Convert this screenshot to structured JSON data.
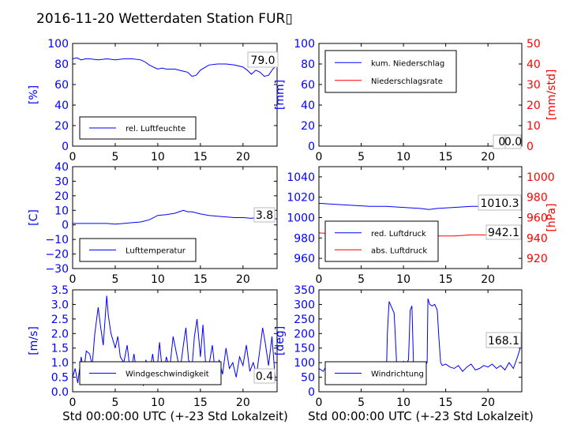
{
  "figure": {
    "title": "2016-11-20 Wetterdaten Station FUR▯",
    "colors": {
      "left_axis": "#0000ff",
      "right_axis": "#ff0000",
      "series_blue": "#0000ff",
      "series_red": "#ff0000",
      "text": "#000000"
    }
  },
  "chart_data": [
    {
      "id": "humidity",
      "type": "line",
      "ylabel": "[%]",
      "xlim": [
        0,
        24
      ],
      "xticks": [
        "0",
        "5",
        "10",
        "15",
        "20"
      ],
      "ylim": [
        0,
        100
      ],
      "yticks": [
        "0",
        "20",
        "40",
        "60",
        "80",
        "100"
      ],
      "legend": {
        "placement": "lower-left",
        "entries": [
          "rel. Luftfeuchte"
        ]
      },
      "annotation": "79.0",
      "series": [
        {
          "name": "rel. Luftfeuchte",
          "x": [
            0,
            0.5,
            1,
            1.5,
            2,
            3,
            4,
            5,
            6,
            7,
            8,
            8.5,
            9,
            9.5,
            10,
            10.5,
            11,
            12,
            13,
            13.5,
            14,
            14.5,
            15,
            16,
            17,
            18,
            19,
            20,
            20.5,
            21,
            21.5,
            22,
            22.5,
            23,
            23.5,
            24
          ],
          "y": [
            85,
            86,
            84,
            85,
            85,
            84,
            85,
            84,
            85,
            85,
            84,
            82,
            79,
            77,
            75,
            76,
            75,
            75,
            73,
            72,
            68,
            69,
            74,
            79,
            80,
            80,
            79,
            77,
            74,
            70,
            74,
            72,
            68,
            69,
            75,
            79
          ]
        }
      ]
    },
    {
      "id": "precipitation",
      "type": "line",
      "ylabel": "[mm]",
      "ylabel_right": "[mm/std]",
      "xlim": [
        0,
        24
      ],
      "xticks": [
        "0",
        "5",
        "10",
        "15",
        "20"
      ],
      "ylim": [
        0,
        100
      ],
      "yticks": [
        "0",
        "20",
        "40",
        "60",
        "80",
        "100"
      ],
      "ylim_right": [
        0,
        50
      ],
      "yticks_right": [
        "0",
        "10",
        "20",
        "30",
        "40",
        "50"
      ],
      "legend": {
        "placement": "top-left",
        "entries": [
          "kum. Niederschlag",
          "Niederschlagsrate"
        ]
      },
      "annotation": "0.0",
      "annotation2": "0.0",
      "series": [
        {
          "name": "kum. Niederschlag",
          "axis": "left",
          "x": [
            0,
            24
          ],
          "y": [
            0,
            0
          ]
        },
        {
          "name": "Niederschlagsrate",
          "axis": "right",
          "x": [
            0,
            24
          ],
          "y": [
            0,
            0
          ]
        }
      ]
    },
    {
      "id": "temperature",
      "type": "line",
      "ylabel": "[C]",
      "xlim": [
        0,
        24
      ],
      "xticks": [
        "0",
        "5",
        "10",
        "15",
        "20"
      ],
      "ylim": [
        -30,
        40
      ],
      "yticks": [
        "−30",
        "−20",
        "−10",
        "0",
        "10",
        "20",
        "30",
        "40"
      ],
      "legend": {
        "placement": "lower-left",
        "entries": [
          "Lufttemperatur"
        ]
      },
      "annotation": "3.8",
      "series": [
        {
          "name": "Lufttemperatur",
          "x": [
            0,
            1,
            2,
            3,
            4,
            5,
            6,
            7,
            8,
            9,
            10,
            11,
            12,
            12.5,
            13,
            13.5,
            14,
            15,
            16,
            17,
            18,
            19,
            20,
            21,
            22,
            23,
            24
          ],
          "y": [
            1,
            1,
            1,
            1,
            1,
            0.5,
            1,
            1.5,
            2,
            3.5,
            6.5,
            7,
            8,
            9,
            10,
            9,
            9,
            7.5,
            6.5,
            6,
            5.5,
            5,
            5,
            4.5,
            5.5,
            5,
            4
          ]
        }
      ]
    },
    {
      "id": "pressure",
      "type": "line",
      "ylabel_right": "[hPa]",
      "xlim": [
        0,
        24
      ],
      "xticks": [
        "0",
        "5",
        "10",
        "15",
        "20"
      ],
      "ylim": [
        950,
        1050
      ],
      "yticks": [
        "960",
        "980",
        "1000",
        "1020",
        "1040"
      ],
      "ylim_right": [
        910,
        1010
      ],
      "yticks_right": [
        "920",
        "940",
        "960",
        "980",
        "1000"
      ],
      "legend": {
        "placement": "lower-left",
        "entries": [
          "red. Luftdruck",
          "abs. Luftdruck"
        ]
      },
      "annotation": "1010.3",
      "annotation2": "942.1",
      "series": [
        {
          "name": "red. Luftdruck",
          "axis": "left",
          "x": [
            0,
            2,
            4,
            6,
            8,
            10,
            12,
            13,
            14,
            16,
            18,
            20,
            22,
            24
          ],
          "y": [
            1014,
            1013,
            1012,
            1011,
            1011,
            1010,
            1009,
            1008,
            1009,
            1010,
            1011,
            1011,
            1011,
            1010.3
          ]
        },
        {
          "name": "abs. Luftdruck",
          "axis": "right",
          "x": [
            0,
            2,
            4,
            6,
            8,
            10,
            12,
            13,
            14,
            16,
            18,
            20,
            22,
            24
          ],
          "y": [
            945,
            944,
            943,
            942,
            942,
            941,
            941,
            941,
            942,
            942,
            943,
            943,
            943,
            942.1
          ]
        }
      ]
    },
    {
      "id": "windspeed",
      "type": "line",
      "ylabel": "[m/s]",
      "xlabel": "Std 00:00:00 UTC (+-23 Std Lokalzeit)",
      "xlim": [
        0,
        24
      ],
      "xticks": [
        "0",
        "5",
        "10",
        "15",
        "20"
      ],
      "ylim": [
        0,
        3.5
      ],
      "yticks": [
        "0.0",
        "0.5",
        "1.0",
        "1.5",
        "2.0",
        "2.5",
        "3.0",
        "3.5"
      ],
      "legend": {
        "placement": "lower-left",
        "entries": [
          "Windgeschwindigkeit"
        ]
      },
      "annotation": "0.4",
      "series": [
        {
          "name": "Windgeschwindigkeit",
          "x": [
            0,
            0.3,
            0.6,
            1,
            1.3,
            1.6,
            2,
            2.3,
            2.6,
            3,
            3.3,
            3.6,
            4,
            4.2,
            4.5,
            5,
            5.3,
            5.6,
            6,
            6.4,
            6.8,
            7.2,
            7.6,
            8,
            8.3,
            8.6,
            9,
            9.4,
            9.8,
            10.2,
            10.6,
            11,
            11.4,
            11.8,
            12.2,
            12.6,
            13,
            13.3,
            13.6,
            14,
            14.3,
            14.6,
            15,
            15.3,
            15.6,
            16,
            16.4,
            16.8,
            17.2,
            17.6,
            18,
            18.4,
            18.8,
            19.2,
            19.6,
            20,
            20.4,
            20.8,
            21.2,
            21.6,
            22,
            22.3,
            22.6,
            23,
            23.4,
            23.8,
            24
          ],
          "y": [
            0.5,
            0.8,
            0.3,
            1.2,
            0.7,
            1.4,
            1.3,
            0.9,
            2.0,
            2.9,
            2.2,
            1.6,
            3.3,
            2.6,
            2.0,
            1.5,
            1.9,
            1.2,
            1.0,
            1.6,
            0.6,
            1.3,
            0.5,
            0.9,
            0.2,
            1.1,
            0.6,
            1.3,
            0.4,
            1.7,
            0.5,
            1.2,
            0.8,
            1.9,
            1.3,
            0.7,
            1.6,
            2.2,
            1.1,
            0.8,
            1.9,
            2.5,
            1.2,
            2.3,
            1.0,
            0.9,
            1.6,
            0.5,
            1.1,
            0.6,
            1.5,
            0.8,
            1.0,
            0.5,
            1.2,
            0.9,
            1.6,
            0.7,
            1.0,
            0.6,
            1.5,
            2.2,
            1.7,
            0.9,
            1.9,
            0.4,
            0.4
          ]
        }
      ]
    },
    {
      "id": "winddirection",
      "type": "line",
      "ylabel": "[deg]",
      "xlabel": "Std 00:00:00 UTC (+-23 Std Lokalzeit)",
      "xlim": [
        0,
        24
      ],
      "xticks": [
        "0",
        "5",
        "10",
        "15",
        "20"
      ],
      "ylim": [
        0,
        350
      ],
      "yticks": [
        "0",
        "50",
        "100",
        "150",
        "200",
        "250",
        "300",
        "350"
      ],
      "legend": {
        "placement": "lower-left",
        "entries": [
          "Windrichtung"
        ]
      },
      "annotation": "168.1",
      "series": [
        {
          "name": "Windrichtung",
          "x": [
            0,
            0.5,
            1,
            1.5,
            2,
            2.5,
            3,
            3.5,
            4,
            4.5,
            5,
            5.5,
            6,
            6.5,
            7,
            7.5,
            8,
            8.1,
            8.3,
            8.6,
            8.9,
            9.2,
            9.3,
            9.6,
            10,
            10.3,
            10.6,
            10.8,
            11,
            11.2,
            11.6,
            12,
            12.4,
            12.8,
            12.9,
            13.1,
            13.4,
            13.7,
            14,
            14.2,
            14.4,
            14.6,
            15,
            15.5,
            16,
            16.5,
            17,
            17.5,
            18,
            18.5,
            19,
            19.5,
            20,
            20.5,
            21,
            21.5,
            22,
            22.5,
            23,
            23.5,
            24
          ],
          "y": [
            80,
            70,
            95,
            75,
            85,
            60,
            80,
            90,
            70,
            95,
            85,
            80,
            90,
            75,
            95,
            80,
            85,
            200,
            310,
            290,
            270,
            95,
            100,
            85,
            105,
            95,
            110,
            280,
            295,
            90,
            100,
            95,
            85,
            100,
            320,
            300,
            295,
            300,
            280,
            180,
            100,
            90,
            95,
            85,
            80,
            90,
            70,
            85,
            95,
            75,
            80,
            90,
            85,
            95,
            80,
            90,
            75,
            100,
            80,
            120,
            168
          ]
        }
      ]
    }
  ]
}
